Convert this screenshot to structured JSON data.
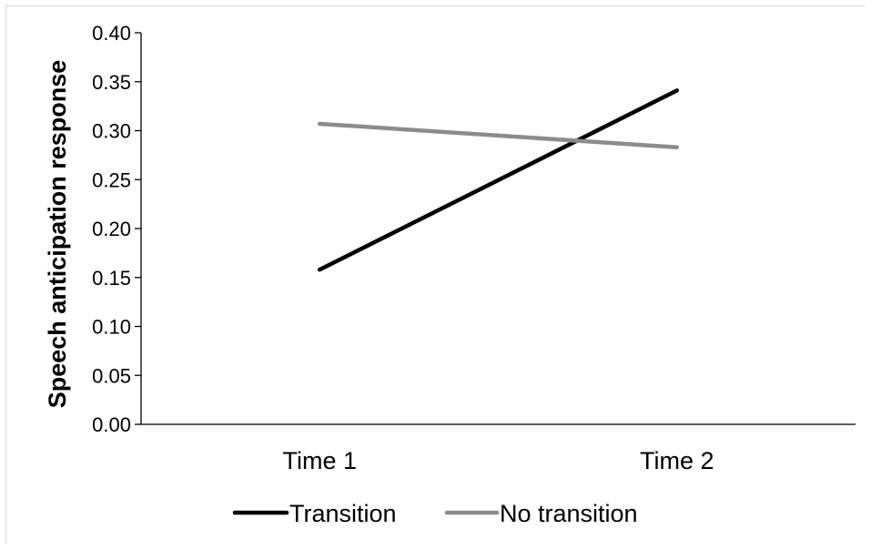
{
  "chart_data": {
    "type": "line",
    "title": "",
    "xlabel": "",
    "ylabel": "Speech anticipation response",
    "categories": [
      "Time 1",
      "Time 2"
    ],
    "ylim": [
      0,
      0.4
    ],
    "yticks": [
      "0.00",
      "0.05",
      "0.10",
      "0.15",
      "0.20",
      "0.25",
      "0.30",
      "0.35",
      "0.40"
    ],
    "grid": false,
    "legend_position": "bottom",
    "series": [
      {
        "name": "Transition",
        "values": [
          0.158,
          0.341
        ],
        "color": "#000000"
      },
      {
        "name": "No transition",
        "values": [
          0.307,
          0.283
        ],
        "color": "#8c8c8c"
      }
    ]
  }
}
